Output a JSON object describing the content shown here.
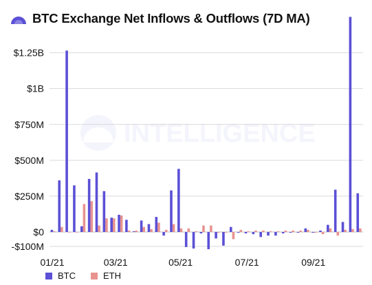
{
  "chart_data": {
    "type": "bar",
    "title": "BTC Exchange Net Inflows & Outflows (7D MA)",
    "watermark": "INTELLIGENCE",
    "y_unit": "USD",
    "ylim": [
      -120000000,
      1500000000
    ],
    "yticks": [
      {
        "value": 1250000000,
        "label": "$1.25B"
      },
      {
        "value": 1000000000,
        "label": "$1B"
      },
      {
        "value": 750000000,
        "label": "$750M"
      },
      {
        "value": 500000000,
        "label": "$500M"
      },
      {
        "value": 250000000,
        "label": "$250M"
      },
      {
        "value": 0,
        "label": "$0"
      },
      {
        "value": -100000000,
        "label": "-$100M"
      }
    ],
    "xticks": [
      {
        "week": 0,
        "label": "01/21"
      },
      {
        "week": 8.5,
        "label": "03/21"
      },
      {
        "week": 17.2,
        "label": "05/21"
      },
      {
        "week": 26.1,
        "label": "07/21"
      },
      {
        "week": 35,
        "label": "09/21"
      }
    ],
    "grid": true,
    "legend_position": "bottom-left",
    "series": [
      {
        "name": "BTC",
        "color": "#5b50d6",
        "values": [
          15,
          360,
          1265,
          325,
          40,
          370,
          415,
          285,
          100,
          120,
          85,
          5,
          80,
          55,
          105,
          -25,
          290,
          440,
          -105,
          -115,
          -10,
          -120,
          -45,
          -95,
          35,
          -5,
          -10,
          -15,
          -35,
          -25,
          -25,
          -10,
          -5,
          -5,
          25,
          -5,
          10,
          50,
          295,
          70,
          1500,
          270
        ]
      },
      {
        "name": "ETH",
        "color": "#e8938f",
        "values": [
          5,
          35,
          0,
          0,
          195,
          215,
          45,
          95,
          95,
          115,
          10,
          10,
          35,
          20,
          65,
          15,
          55,
          25,
          25,
          5,
          45,
          45,
          -5,
          -5,
          -50,
          15,
          5,
          10,
          10,
          5,
          5,
          10,
          10,
          10,
          15,
          -5,
          -15,
          25,
          -25,
          15,
          20,
          25
        ]
      }
    ]
  },
  "legend": {
    "btc_label": "BTC",
    "eth_label": "ETH"
  },
  "colors": {
    "btc": "#5b50d6",
    "eth": "#e8938f",
    "logo": "#5b50d6",
    "grid": "#d9d9d9"
  }
}
